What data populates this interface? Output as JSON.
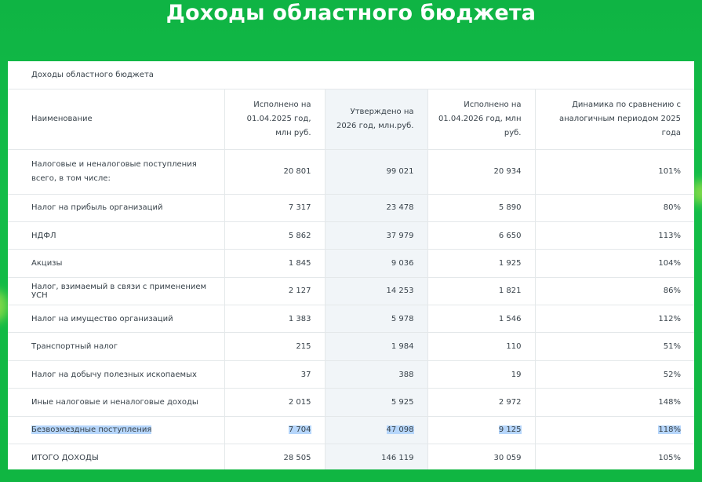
{
  "page": {
    "title": "Доходы областного бюджета"
  },
  "table": {
    "caption": "Доходы областного бюджета",
    "headers": [
      "Наименование",
      "Исполнено на 01.04.2025 год, млн руб.",
      "Утверждено на 2026 год, млн.руб.",
      "Исполнено на 01.04.2026 год, млн руб.",
      "Динамика по сравнению с аналогичным периодом 2025 года"
    ],
    "rows": [
      {
        "name": "Налоговые и неналоговые поступления всего, в том числе:",
        "executed_2025": "20 801",
        "approved_2026": "99 021",
        "executed_2026": "20 934",
        "dynamics": "101%"
      },
      {
        "name": "Налог на прибыль организаций",
        "executed_2025": "7 317",
        "approved_2026": "23 478",
        "executed_2026": "5 890",
        "dynamics": "80%"
      },
      {
        "name": "НДФЛ",
        "executed_2025": "5 862",
        "approved_2026": "37 979",
        "executed_2026": "6 650",
        "dynamics": "113%"
      },
      {
        "name": "Акцизы",
        "executed_2025": "1 845",
        "approved_2026": "9 036",
        "executed_2026": "1 925",
        "dynamics": "104%"
      },
      {
        "name": "Налог, взимаемый в связи с применением УСН",
        "executed_2025": "2 127",
        "approved_2026": "14 253",
        "executed_2026": "1 821",
        "dynamics": "86%"
      },
      {
        "name": "Налог на имущество организаций",
        "executed_2025": "1 383",
        "approved_2026": "5 978",
        "executed_2026": "1 546",
        "dynamics": "112%"
      },
      {
        "name": "Транспортный налог",
        "executed_2025": "215",
        "approved_2026": "1 984",
        "executed_2026": "110",
        "dynamics": "51%"
      },
      {
        "name": "Налог на добычу полезных ископаемых",
        "executed_2025": "37",
        "approved_2026": "388",
        "executed_2026": "19",
        "dynamics": "52%"
      },
      {
        "name": "Иные налоговые и неналоговые доходы",
        "executed_2025": "2 015",
        "approved_2026": "5 925",
        "executed_2026": "2 972",
        "dynamics": "148%"
      },
      {
        "name": "Безвозмездные поступления",
        "executed_2025": "7 704",
        "approved_2026": "47 098",
        "executed_2026": "9 125",
        "dynamics": "118%"
      },
      {
        "name": "ИТОГО ДОХОДЫ",
        "executed_2025": "28 505",
        "approved_2026": "146 119",
        "executed_2026": "30 059",
        "dynamics": "105%"
      }
    ]
  },
  "colors": {
    "background": "#12b845",
    "title_text": "#ffffff",
    "text_selection": "#b6d6fb",
    "shaded_column": "#f1f5f8"
  }
}
